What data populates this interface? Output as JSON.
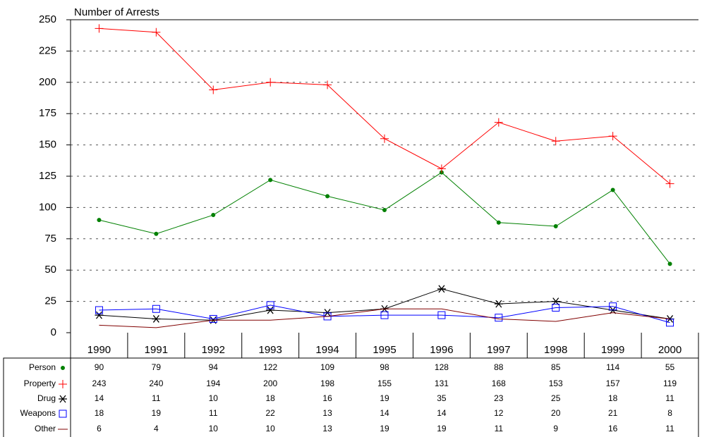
{
  "chart_data": {
    "type": "line",
    "title": "Number of Arrests",
    "categories": [
      "1990",
      "1991",
      "1992",
      "1993",
      "1994",
      "1995",
      "1996",
      "1997",
      "1998",
      "1999",
      "2000"
    ],
    "ylim": [
      0,
      250
    ],
    "yticks": [
      0,
      25,
      50,
      75,
      100,
      125,
      150,
      175,
      200,
      225,
      250
    ],
    "grid": true,
    "series": [
      {
        "name": "Person",
        "color": "#008000",
        "marker": "dot",
        "values": [
          90,
          79,
          94,
          122,
          109,
          98,
          128,
          88,
          85,
          114,
          55
        ]
      },
      {
        "name": "Property",
        "color": "#ff0000",
        "marker": "plus",
        "values": [
          243,
          240,
          194,
          200,
          198,
          155,
          131,
          168,
          153,
          157,
          119
        ]
      },
      {
        "name": "Drug",
        "color": "#000000",
        "marker": "star",
        "values": [
          14,
          11,
          10,
          18,
          16,
          19,
          35,
          23,
          25,
          18,
          11
        ]
      },
      {
        "name": "Weapons",
        "color": "#0000ff",
        "marker": "square",
        "values": [
          18,
          19,
          11,
          22,
          13,
          14,
          14,
          12,
          20,
          21,
          8
        ]
      },
      {
        "name": "Other",
        "color": "#800000",
        "marker": "line",
        "values": [
          6,
          4,
          10,
          10,
          13,
          19,
          19,
          11,
          9,
          16,
          11
        ]
      }
    ]
  }
}
